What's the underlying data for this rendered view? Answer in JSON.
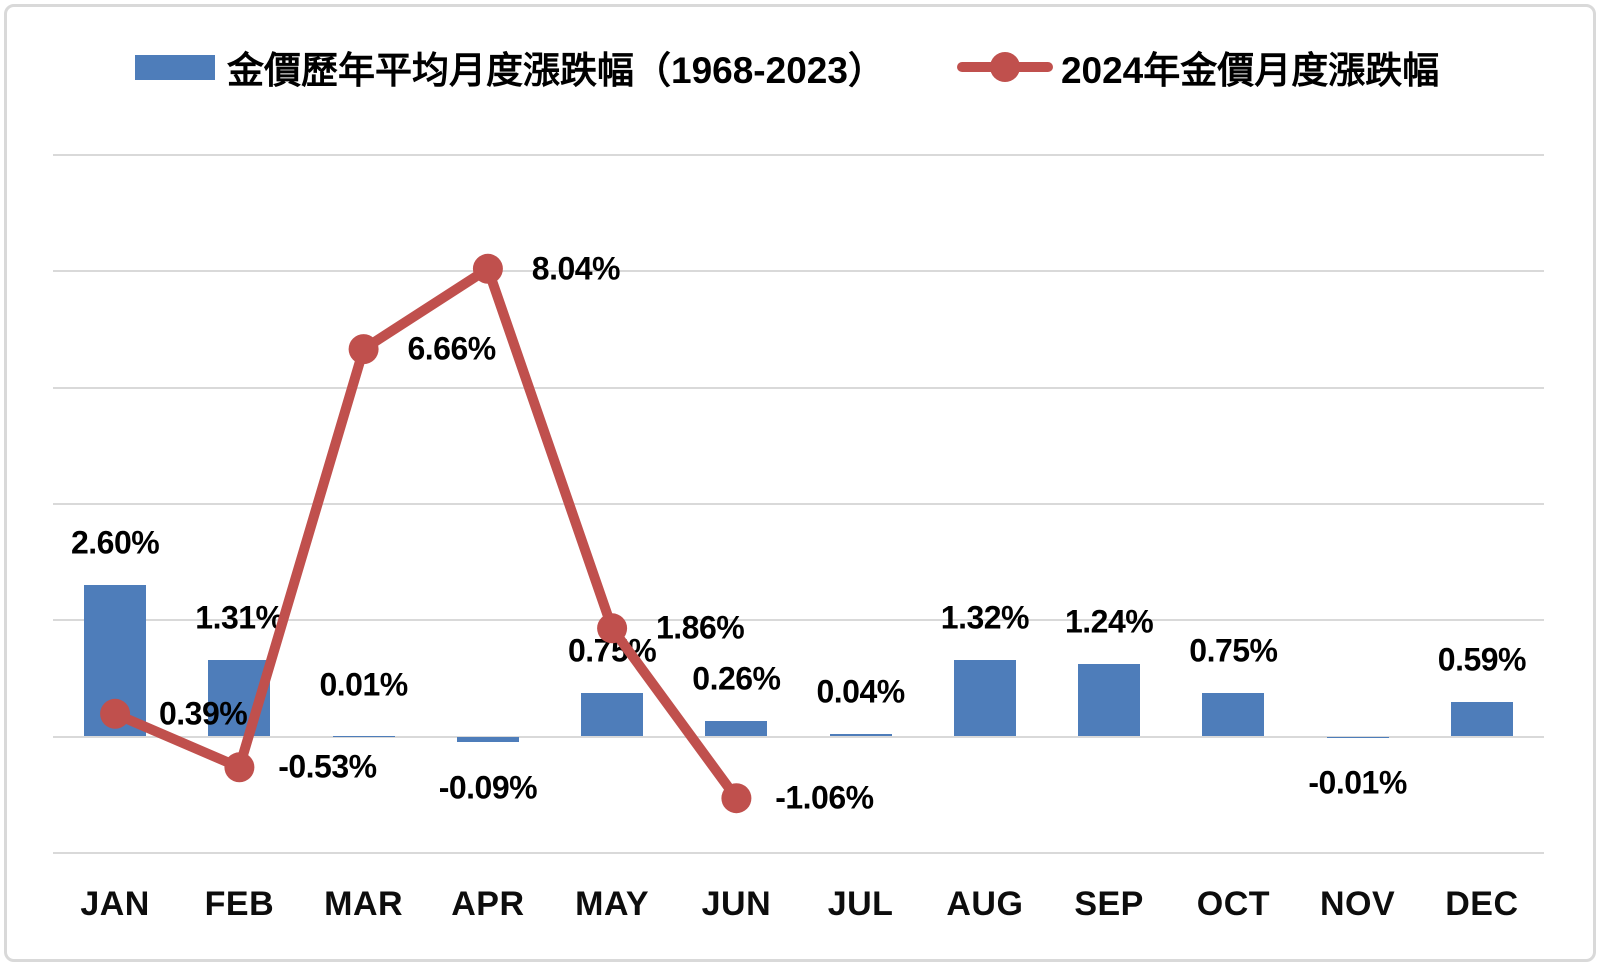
{
  "legend": {
    "bar_series_label": "金價歷年平均月度漲跌幅（1968-2023）",
    "line_series_label": "2024年金價月度漲跌幅"
  },
  "colors": {
    "bar": "#4E7DBA",
    "line": "#C0504D",
    "grid": "#D9D9D9",
    "text": "#000000",
    "border": "#D9D9D9"
  },
  "chart_data": {
    "type": "bar",
    "subtype": "bar-with-line-overlay",
    "title": "",
    "xlabel": "",
    "ylabel": "",
    "ylim": [
      -2,
      10
    ],
    "gridline_step_pct": 2,
    "grid": true,
    "legend_position": "top",
    "categories": [
      "JAN",
      "FEB",
      "MAR",
      "APR",
      "MAY",
      "JUN",
      "JUL",
      "AUG",
      "SEP",
      "OCT",
      "NOV",
      "DEC"
    ],
    "series": [
      {
        "name": "金價歷年平均月度漲跌幅（1968-2023）",
        "type": "bar",
        "color": "#4E7DBA",
        "values": [
          2.6,
          1.31,
          0.01,
          -0.09,
          0.75,
          0.26,
          0.04,
          1.32,
          1.24,
          0.75,
          -0.01,
          0.59
        ],
        "labels": [
          "2.60%",
          "1.31%",
          "0.01%",
          "-0.09%",
          "0.75%",
          "0.26%",
          "0.04%",
          "1.32%",
          "1.24%",
          "0.75%",
          "-0.01%",
          "0.59%"
        ]
      },
      {
        "name": "2024年金價月度漲跌幅",
        "type": "line",
        "color": "#C0504D",
        "values": [
          0.39,
          -0.53,
          6.66,
          8.04,
          1.86,
          -1.06
        ],
        "labels": [
          "0.39%",
          "-0.53%",
          "6.66%",
          "8.04%",
          "1.86%",
          "-1.06%"
        ]
      }
    ]
  }
}
